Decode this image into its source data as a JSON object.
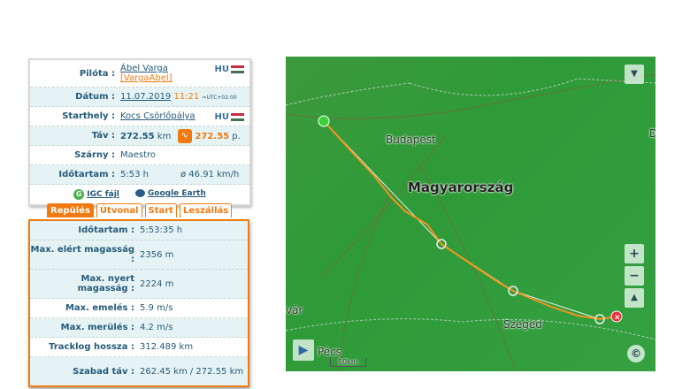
{
  "info": {
    "pilot_label": "Pilóta :",
    "pilot_name": "Ábel Varga",
    "pilot_user": "[VargaAbel]",
    "pilot_country": "HU",
    "date_label": "Dátum :",
    "date": "11.07.2019",
    "time": "11:21",
    "utc": "=UTC+02:00",
    "launch_label": "Starthely :",
    "launch": "Kocs Csörlőpálya",
    "launch_country": "HU",
    "dist_label": "Táv :",
    "dist": "272.55",
    "dist_unit": "km",
    "score": "272.55",
    "score_unit": "p.",
    "wing_label": "Szárny :",
    "wing": "Maestro",
    "duration_label": "Időtartam :",
    "duration": "5:53 h",
    "speed": "ø 46.91 km/h",
    "igc": "IGC fájl",
    "ge": "Google Earth",
    "igc_icon": "G"
  },
  "tabs": [
    "Repülés",
    "Útvonal",
    "Start",
    "Leszállás"
  ],
  "stats": [
    {
      "label": "Időtartam :",
      "value": "5:53:35 h"
    },
    {
      "label": "Max. elért magasság :",
      "value": "2356 m"
    },
    {
      "label": "Max. nyert magasság :",
      "value": "2224 m"
    },
    {
      "label": "Max. emelés :",
      "value": "5.9 m/s"
    },
    {
      "label": "Max. merülés :",
      "value": "4.2 m/s"
    },
    {
      "label": "Tracklog hossza :",
      "value": "312.489 km"
    },
    {
      "label": "Szabad táv :",
      "value": "262.45 km / 272.55 km"
    }
  ],
  "map": {
    "country": "Magyarország",
    "budapest": "Budapest",
    "szeged": "Szeged",
    "pecs": "Pécs",
    "var": "vár",
    "d": "D",
    "scale": "50km",
    "zoom_in": "+",
    "zoom_out": "−",
    "track_color": "#f5941e"
  }
}
